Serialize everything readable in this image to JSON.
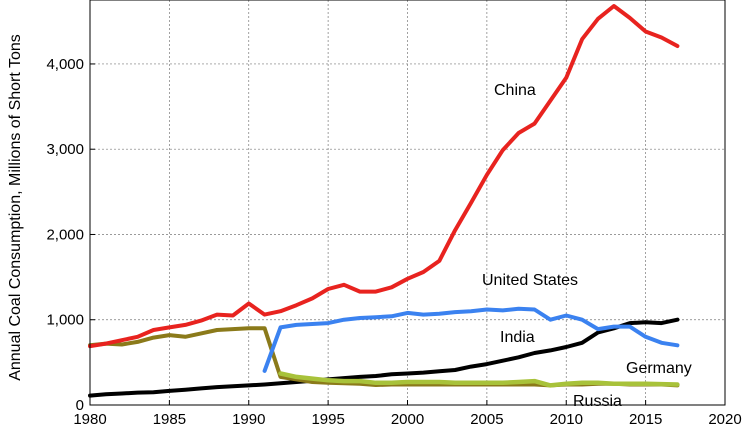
{
  "chart_data": {
    "type": "line",
    "title": "",
    "xlabel": "",
    "ylabel": "Annual Coal Consumption, Millions of Short Tons",
    "xlim": [
      1980,
      2020
    ],
    "ylim": [
      0,
      4750
    ],
    "grid": true,
    "x_ticks": [
      1980,
      1985,
      1990,
      1995,
      2000,
      2005,
      2010,
      2015,
      2020
    ],
    "x_tick_labels": [
      "1980",
      "1985",
      "1990",
      "1995",
      "2000",
      "2005",
      "2010",
      "2015",
      "2020"
    ],
    "y_ticks": [
      0,
      1000,
      2000,
      3000,
      4000
    ],
    "y_tick_labels": [
      "0",
      "1,000",
      "2,000",
      "3,000",
      "4,000"
    ],
    "series": [
      {
        "name": "China",
        "color": "#e8231f",
        "x": [
          1980,
          1981,
          1982,
          1983,
          1984,
          1985,
          1986,
          1987,
          1988,
          1989,
          1990,
          1991,
          1992,
          1993,
          1994,
          1995,
          1996,
          1997,
          1998,
          1999,
          2000,
          2001,
          2002,
          2003,
          2004,
          2005,
          2006,
          2007,
          2008,
          2009,
          2010,
          2011,
          2012,
          2013,
          2014,
          2015,
          2016,
          2017
        ],
        "values": [
          690,
          720,
          760,
          800,
          880,
          910,
          940,
          990,
          1060,
          1050,
          1190,
          1060,
          1100,
          1170,
          1250,
          1360,
          1410,
          1330,
          1330,
          1380,
          1480,
          1560,
          1690,
          2050,
          2370,
          2700,
          2990,
          3190,
          3300,
          3570,
          3840,
          4290,
          4530,
          4680,
          4540,
          4380,
          4310,
          4210
        ]
      },
      {
        "name": "United States",
        "color": "#3b82f0",
        "x": [
          1991,
          1992,
          1993,
          1994,
          1995,
          1996,
          1997,
          1998,
          1999,
          2000,
          2001,
          2002,
          2003,
          2004,
          2005,
          2006,
          2007,
          2008,
          2009,
          2010,
          2011,
          2012,
          2013,
          2014,
          2015,
          2016,
          2017
        ],
        "values": [
          400,
          910,
          940,
          950,
          960,
          1000,
          1020,
          1030,
          1040,
          1080,
          1060,
          1070,
          1090,
          1100,
          1120,
          1110,
          1130,
          1120,
          1000,
          1050,
          1000,
          890,
          920,
          920,
          800,
          730,
          700
        ]
      },
      {
        "name": "India",
        "color": "#000000",
        "x": [
          1980,
          1981,
          1982,
          1983,
          1984,
          1985,
          1986,
          1987,
          1988,
          1989,
          1990,
          1991,
          1992,
          1993,
          1994,
          1995,
          1996,
          1997,
          1998,
          1999,
          2000,
          2001,
          2002,
          2003,
          2004,
          2005,
          2006,
          2007,
          2008,
          2009,
          2010,
          2011,
          2012,
          2013,
          2014,
          2015,
          2016,
          2017
        ],
        "values": [
          110,
          125,
          135,
          145,
          150,
          165,
          180,
          195,
          210,
          220,
          230,
          240,
          255,
          270,
          285,
          300,
          315,
          330,
          340,
          360,
          370,
          380,
          395,
          410,
          450,
          480,
          520,
          560,
          610,
          640,
          680,
          730,
          850,
          900,
          960,
          970,
          960,
          1000
        ]
      },
      {
        "name": "Germany",
        "color": "#8b7a1a",
        "x": [
          1980,
          1981,
          1982,
          1983,
          1984,
          1985,
          1986,
          1987,
          1988,
          1989,
          1990,
          1991,
          1992,
          1993,
          1994,
          1995,
          1996,
          1997,
          1998,
          1999,
          2000,
          2001,
          2002,
          2003,
          2004,
          2005,
          2006,
          2007,
          2008,
          2009,
          2010,
          2011,
          2012,
          2013,
          2014,
          2015,
          2016,
          2017
        ],
        "values": [
          700,
          720,
          710,
          740,
          790,
          820,
          800,
          840,
          880,
          890,
          900,
          900,
          330,
          300,
          270,
          260,
          255,
          250,
          235,
          240,
          240,
          240,
          240,
          240,
          240,
          240,
          240,
          240,
          240,
          230,
          240,
          240,
          250,
          250,
          240,
          240,
          240,
          230
        ]
      },
      {
        "name": "Russia",
        "color": "#a8c23a",
        "x": [
          1992,
          1993,
          1994,
          1995,
          1996,
          1997,
          1998,
          1999,
          2000,
          2001,
          2002,
          2003,
          2004,
          2005,
          2006,
          2007,
          2008,
          2009,
          2010,
          2011,
          2012,
          2013,
          2014,
          2015,
          2016,
          2017
        ],
        "values": [
          370,
          330,
          310,
          290,
          280,
          280,
          260,
          260,
          270,
          270,
          270,
          260,
          260,
          260,
          260,
          270,
          280,
          230,
          250,
          260,
          260,
          250,
          250,
          250,
          245,
          240
        ]
      }
    ],
    "annotations": [
      "China",
      "United States",
      "India",
      "Germany",
      "Russia"
    ]
  }
}
